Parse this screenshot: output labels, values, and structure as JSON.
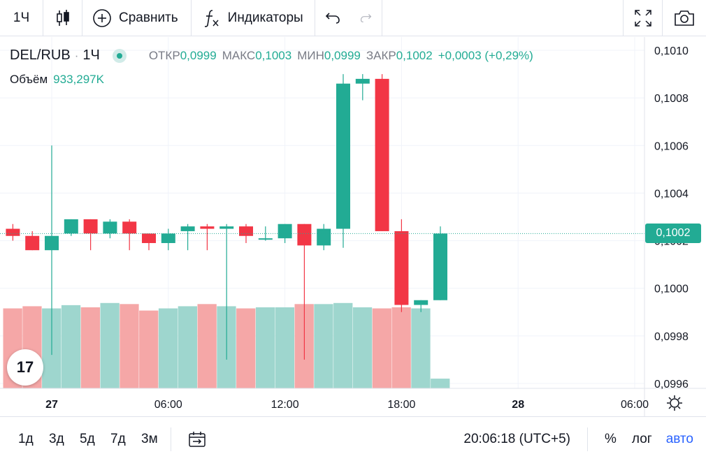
{
  "toolbar": {
    "interval": "1Ч",
    "compare_label": "Сравнить",
    "indicators_label": "Индикаторы",
    "icons": [
      "candles-icon",
      "plus-circle-icon",
      "fx-icon",
      "undo-icon",
      "redo-icon",
      "fullscreen-icon",
      "camera-icon"
    ]
  },
  "legend": {
    "symbol": "DEL/RUB",
    "separator": "·",
    "timeframe": "1Ч",
    "open_label": "ОТКР",
    "open": "0,0999",
    "high_label": "МАКС",
    "high": "0,1003",
    "low_label": "МИН",
    "low": "0,0999",
    "close_label": "ЗАКР",
    "close": "0,1002",
    "change": "+0,0003 (+0,29%)"
  },
  "volume": {
    "label": "Объём",
    "value": "933,297K"
  },
  "price_tag": "0,1002",
  "logo_text": "17",
  "bottom": {
    "ranges": [
      "1д",
      "3д",
      "5д",
      "7д",
      "3м"
    ],
    "time": "20:06:18 (UTC+5)",
    "percent": "%",
    "log": "лог",
    "auto": "авто"
  },
  "colors": {
    "up": "#22ab94",
    "down": "#f23645",
    "up_vol": "#9ed6ce",
    "down_vol": "#f5a7a7"
  },
  "chart_data": {
    "type": "candlestick",
    "y_ticks": [
      "0,1010",
      "0,1008",
      "0,1006",
      "0,1004",
      "0,1002",
      "0,1000",
      "0,0998",
      "0,0996"
    ],
    "ylim": [
      0.09956,
      0.10104
    ],
    "x_ticks": [
      {
        "label": "27",
        "hour": 0
      },
      {
        "label": "06:00",
        "hour": 6
      },
      {
        "label": "12:00",
        "hour": 12
      },
      {
        "label": "18:00",
        "hour": 18
      },
      {
        "label": "28",
        "hour": 24
      },
      {
        "label": "06:00",
        "hour": 30
      }
    ],
    "grid": true,
    "candles": [
      {
        "hour": -2,
        "open": 0.10025,
        "high": 0.10027,
        "low": 0.1002,
        "close": 0.10022,
        "volume": 0.74
      },
      {
        "hour": -1,
        "open": 0.10022,
        "high": 0.10024,
        "low": 0.10016,
        "close": 0.10016,
        "volume": 0.76
      },
      {
        "hour": 0,
        "open": 0.10016,
        "high": 0.1006,
        "low": 0.09972,
        "close": 0.10022,
        "volume": 0.74
      },
      {
        "hour": 1,
        "open": 0.10023,
        "high": 0.10029,
        "low": 0.10022,
        "close": 0.10029,
        "volume": 0.77
      },
      {
        "hour": 2,
        "open": 0.10029,
        "high": 0.10029,
        "low": 0.10016,
        "close": 0.10023,
        "volume": 0.75
      },
      {
        "hour": 3,
        "open": 0.10023,
        "high": 0.10029,
        "low": 0.10021,
        "close": 0.10028,
        "volume": 0.79
      },
      {
        "hour": 4,
        "open": 0.10028,
        "high": 0.10029,
        "low": 0.10016,
        "close": 0.10023,
        "volume": 0.78
      },
      {
        "hour": 5,
        "open": 0.10023,
        "high": 0.10023,
        "low": 0.10016,
        "close": 0.10019,
        "volume": 0.72
      },
      {
        "hour": 6,
        "open": 0.10019,
        "high": 0.10025,
        "low": 0.10016,
        "close": 0.10023,
        "volume": 0.74
      },
      {
        "hour": 7,
        "open": 0.10024,
        "high": 0.10027,
        "low": 0.10016,
        "close": 0.10026,
        "volume": 0.76
      },
      {
        "hour": 8,
        "open": 0.10026,
        "high": 0.10027,
        "low": 0.10016,
        "close": 0.10025,
        "volume": 0.78
      },
      {
        "hour": 9,
        "open": 0.10025,
        "high": 0.10027,
        "low": 0.0997,
        "close": 0.10026,
        "volume": 0.76
      },
      {
        "hour": 10,
        "open": 0.10026,
        "high": 0.10027,
        "low": 0.10019,
        "close": 0.10022,
        "volume": 0.74
      },
      {
        "hour": 11,
        "open": 0.10021,
        "high": 0.10026,
        "low": 0.1002,
        "close": 0.10021,
        "volume": 0.75
      },
      {
        "hour": 12,
        "open": 0.10021,
        "high": 0.10027,
        "low": 0.10019,
        "close": 0.10027,
        "volume": 0.75
      },
      {
        "hour": 13,
        "open": 0.10027,
        "high": 0.10027,
        "low": 0.0997,
        "close": 0.10018,
        "volume": 0.78
      },
      {
        "hour": 14,
        "open": 0.10018,
        "high": 0.10027,
        "low": 0.10016,
        "close": 0.10025,
        "volume": 0.78
      },
      {
        "hour": 15,
        "open": 0.10025,
        "high": 0.1009,
        "low": 0.10017,
        "close": 0.10086,
        "volume": 0.79
      },
      {
        "hour": 16,
        "open": 0.10086,
        "high": 0.1009,
        "low": 0.10079,
        "close": 0.10088,
        "volume": 0.75
      },
      {
        "hour": 17,
        "open": 0.10088,
        "high": 0.1009,
        "low": 0.10024,
        "close": 0.10024,
        "volume": 0.74
      },
      {
        "hour": 18,
        "open": 0.10024,
        "high": 0.10029,
        "low": 0.0999,
        "close": 0.09993,
        "volume": 0.75
      },
      {
        "hour": 19,
        "open": 0.09993,
        "high": 0.09995,
        "low": 0.0999,
        "close": 0.09995,
        "volume": 0.74
      },
      {
        "hour": 20,
        "open": 0.09995,
        "high": 0.10026,
        "low": 0.09995,
        "close": 0.10023,
        "volume": 0.09
      }
    ]
  }
}
